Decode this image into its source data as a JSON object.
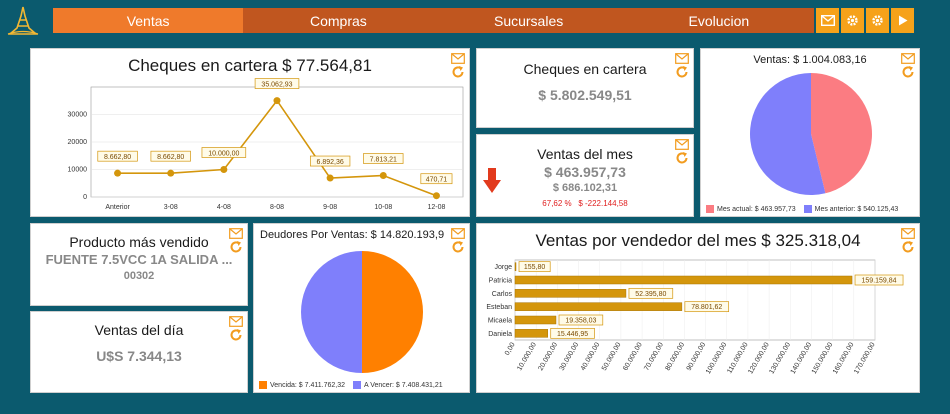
{
  "nav": {
    "tabs": [
      "Ventas",
      "Compras",
      "Sucursales",
      "Evolucion"
    ],
    "active_tab": "Ventas",
    "buttons": [
      "mail-icon",
      "gear-icon",
      "gear-icon",
      "play-icon"
    ]
  },
  "cheques_chart": {
    "title": "Cheques en cartera $ 77.564,81",
    "chart_data": {
      "type": "line",
      "categories": [
        "Anterior",
        "3-08",
        "4-08",
        "8-08",
        "9-08",
        "10-08",
        "12-08"
      ],
      "values": [
        8662.8,
        8662.8,
        10000.0,
        35062.93,
        6892.36,
        7813.21,
        470.71
      ],
      "labels": [
        "8.662,80",
        "8.662,80",
        "10.000,00",
        "35.062,93",
        "6.892,36",
        "7.813,21",
        "470,71"
      ],
      "yticks": [
        "0",
        "10000",
        "20000",
        "30000"
      ],
      "ylim": [
        0,
        40000
      ],
      "color": "#d4960c"
    }
  },
  "cheques_total": {
    "title": "Cheques en cartera",
    "value": "$ 5.802.549,51"
  },
  "ventas_mes": {
    "title": "Ventas del mes",
    "value": "$ 463.957,73",
    "previous": "$ 686.102,31",
    "delta": "67,62 %   $ -222.144,58"
  },
  "ventas_pie": {
    "title": "Ventas: $ 1.004.083,16",
    "chart_data": {
      "type": "pie",
      "slices": [
        {
          "name": "Mes actual: $ 463.957,73",
          "value": 463957.73,
          "color": "#fb7c82"
        },
        {
          "name": "Mes anterior: $ 540.125,43",
          "value": 540125.43,
          "color": "#7f7ffb"
        }
      ]
    }
  },
  "producto": {
    "title": "Producto más vendido",
    "name": "FUENTE 7.5VCC 1A SALIDA ...",
    "code": "00302"
  },
  "ventas_dia": {
    "title": "Ventas del día",
    "value": "U$S 7.344,13"
  },
  "deudores": {
    "title": "Deudores Por Ventas: $ 14.820.193,9",
    "chart_data": {
      "type": "pie",
      "slices": [
        {
          "name": "Vencida: $ 7.411.762,32",
          "value": 7411762.32,
          "color": "#ff8000"
        },
        {
          "name": "A Vencer: $ 7.408.431,21",
          "value": 7408431.21,
          "color": "#7f7ffb"
        }
      ]
    }
  },
  "vendedor": {
    "title": "Ventas por vendedor del mes $ 325.318,04",
    "chart_data": {
      "type": "bar",
      "orientation": "horizontal",
      "categories": [
        "Jorge",
        "Patricia",
        "Carlos",
        "Esteban",
        "Micaela",
        "Daniela"
      ],
      "values": [
        155.8,
        159159.84,
        52395.8,
        78801.62,
        19358.03,
        15446.95
      ],
      "labels": [
        "155,80",
        "159.159,84",
        "52.395,80",
        "78.801,62",
        "19.358,03",
        "15.446,95"
      ],
      "xticks": [
        "0,00",
        "10.000,00",
        "20.000,00",
        "30.000,00",
        "40.000,00",
        "50.000,00",
        "60.000,00",
        "70.000,00",
        "80.000,00",
        "90.000,00",
        "100.000,00",
        "110.000,00",
        "120.000,00",
        "130.000,00",
        "140.000,00",
        "150.000,00",
        "160.000,00",
        "170.000,00"
      ],
      "xlim": [
        0,
        170000
      ],
      "color": "#d4960c"
    }
  }
}
